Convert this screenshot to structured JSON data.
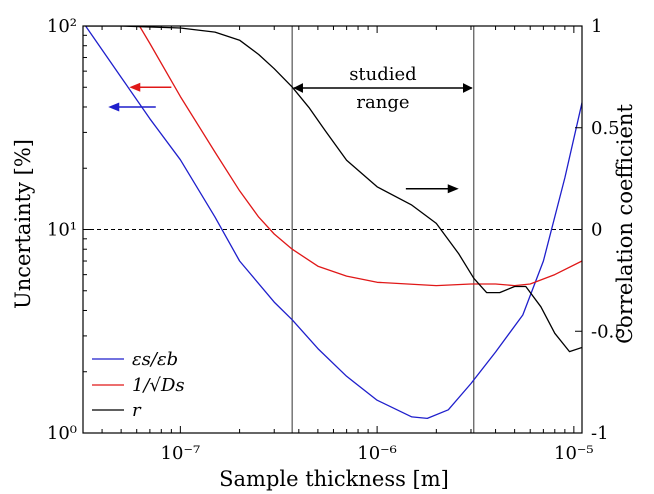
{
  "chart_data": {
    "type": "line",
    "xlabel": "Sample thickness [m]",
    "ylabel_left": "Uncertainty [%]",
    "ylabel_right": "Correlation coefficient",
    "x_scale": "log",
    "y_left_scale": "log",
    "xlim": [
      3.2e-08,
      1.1e-05
    ],
    "ylim_left": [
      1,
      100
    ],
    "ylim_right": [
      -1,
      1
    ],
    "x_ticks": [
      {
        "value": 1e-07,
        "label": "10⁻⁷"
      },
      {
        "value": 1e-06,
        "label": "10⁻⁶"
      },
      {
        "value": 1e-05,
        "label": "10⁻⁵"
      }
    ],
    "y_left_ticks": [
      {
        "value": 1,
        "label": "10⁰"
      },
      {
        "value": 10,
        "label": "10¹"
      },
      {
        "value": 100,
        "label": "10²"
      }
    ],
    "y_right_ticks": [
      {
        "value": 1,
        "label": "1"
      },
      {
        "value": 0.5,
        "label": "0.5"
      },
      {
        "value": 0,
        "label": "0"
      },
      {
        "value": -0.5,
        "label": "-0.5"
      },
      {
        "value": -1,
        "label": "-1"
      }
    ],
    "reference_line": {
      "axis": "left",
      "y": 10,
      "style": "dashed"
    },
    "studied_range": {
      "x_min": 3.7e-07,
      "x_max": 3.1e-06,
      "label_line1": "studied",
      "label_line2": "range"
    },
    "series": [
      {
        "name": "εs/εb",
        "axis": "left",
        "color": "#1f1fcc",
        "x": [
          3.3e-08,
          5e-08,
          7e-08,
          1e-07,
          1.5e-07,
          2e-07,
          3e-07,
          3.7e-07,
          5e-07,
          7e-07,
          1e-06,
          1.5e-06,
          1.8e-06,
          2.3e-06,
          3e-06,
          4e-06,
          5.5e-06,
          7e-06,
          9e-06,
          1.1e-05
        ],
        "y": [
          100,
          56,
          35,
          22,
          11.5,
          7,
          4.4,
          3.6,
          2.6,
          1.9,
          1.45,
          1.2,
          1.18,
          1.3,
          1.75,
          2.5,
          3.8,
          7,
          18,
          42
        ]
      },
      {
        "name": "1/√Ds",
        "axis": "left",
        "color": "#e01818",
        "x": [
          6.2e-08,
          7e-08,
          1e-07,
          1.5e-07,
          2e-07,
          2.5e-07,
          3e-07,
          3.7e-07,
          5e-07,
          7e-07,
          1e-06,
          2e-06,
          3e-06,
          4e-06,
          5e-06,
          6e-06,
          8e-06,
          1.1e-05
        ],
        "y": [
          100,
          82,
          45,
          24,
          15.5,
          11.5,
          9.5,
          8,
          6.6,
          5.9,
          5.5,
          5.3,
          5.4,
          5.4,
          5.3,
          5.4,
          6,
          7
        ]
      },
      {
        "name": "r",
        "axis": "right",
        "color": "#000000",
        "x": [
          3.3e-08,
          5e-08,
          7e-08,
          1e-07,
          1.5e-07,
          2e-07,
          2.5e-07,
          3e-07,
          3.7e-07,
          4.5e-07,
          5.5e-07,
          7e-07,
          1e-06,
          1.5e-06,
          2e-06,
          2.6e-06,
          3.1e-06,
          3.6e-06,
          4.2e-06,
          5e-06,
          5.7e-06,
          6.8e-06,
          8e-06,
          9.5e-06,
          1.1e-05
        ],
        "y": [
          1,
          1,
          0.995,
          0.99,
          0.97,
          0.93,
          0.86,
          0.79,
          0.7,
          0.6,
          0.48,
          0.34,
          0.21,
          0.12,
          0.03,
          -0.12,
          -0.24,
          -0.31,
          -0.31,
          -0.28,
          -0.28,
          -0.38,
          -0.51,
          -0.6,
          -0.58
        ]
      }
    ],
    "legend": {
      "position": "bottom-left",
      "entries": [
        {
          "label": "εs/εb",
          "color": "#1f1fcc"
        },
        {
          "label": "1/√Ds",
          "color": "#e01818"
        },
        {
          "label": "r",
          "color": "#000000"
        }
      ]
    },
    "indicator_arrows": [
      {
        "series": "1/√Ds",
        "direction": "left",
        "axis": "left",
        "x_from": 9e-08,
        "x_to": 5.5e-08,
        "y": 50,
        "color": "#e01818"
      },
      {
        "series": "εs/εb",
        "direction": "left",
        "axis": "left",
        "x_from": 7.5e-08,
        "x_to": 4.3e-08,
        "y": 40,
        "color": "#1f1fcc"
      },
      {
        "series": "r",
        "direction": "right",
        "axis": "right",
        "x_from": 1.4e-06,
        "x_to": 2.6e-06,
        "y": 0.2,
        "color": "#000000"
      }
    ]
  }
}
